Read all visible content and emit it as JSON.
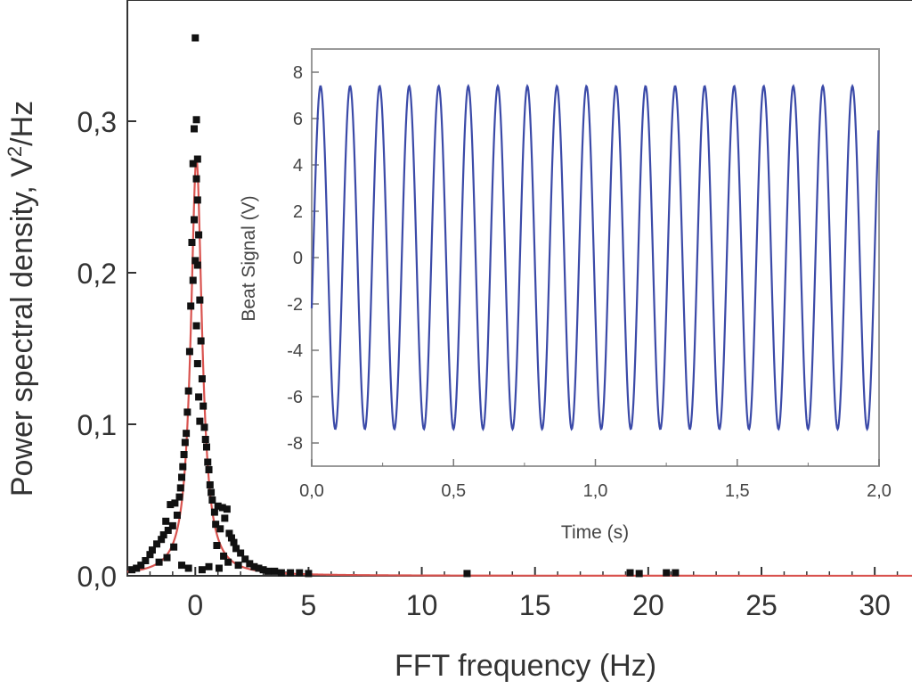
{
  "chart_data": [
    {
      "type": "scatter",
      "xlabel": "FFT frequency (Hz)",
      "ylabel_main": "Power spectral density, V",
      "ylabel_sup": "2",
      "ylabel_tail": "/Hz",
      "xlim": [
        -3,
        32
      ],
      "ylim": [
        0,
        0.38
      ],
      "xticks": [
        0,
        5,
        10,
        15,
        20,
        25,
        30
      ],
      "xtick_labels": [
        "0",
        "5",
        "10",
        "15",
        "20",
        "25",
        "30"
      ],
      "yticks": [
        0.0,
        0.1,
        0.2,
        0.3
      ],
      "ytick_labels": [
        "0,0",
        "0,1",
        "0,2",
        "0,3"
      ],
      "series": [
        {
          "kind": "scatter",
          "color": "#111111",
          "points": [
            [
              0.0,
              0.355
            ],
            [
              0.05,
              0.301
            ],
            [
              -0.05,
              0.295
            ],
            [
              0.1,
              0.275
            ],
            [
              -0.1,
              0.272
            ],
            [
              0.05,
              0.262
            ],
            [
              0.1,
              0.248
            ],
            [
              -0.05,
              0.235
            ],
            [
              0.15,
              0.225
            ],
            [
              -0.15,
              0.22
            ],
            [
              0.0,
              0.208
            ],
            [
              0.1,
              0.205
            ],
            [
              -0.1,
              0.195
            ],
            [
              0.2,
              0.182
            ],
            [
              -0.2,
              0.178
            ],
            [
              0.05,
              0.165
            ],
            [
              0.25,
              0.155
            ],
            [
              -0.25,
              0.148
            ],
            [
              0.1,
              0.14
            ],
            [
              0.3,
              0.13
            ],
            [
              -0.3,
              0.122
            ],
            [
              0.15,
              0.118
            ],
            [
              0.35,
              0.112
            ],
            [
              -0.35,
              0.108
            ],
            [
              0.2,
              0.102
            ],
            [
              0.4,
              0.098
            ],
            [
              -0.4,
              0.094
            ],
            [
              0.45,
              0.09
            ],
            [
              -0.45,
              0.088
            ],
            [
              0.5,
              0.085
            ],
            [
              -0.5,
              0.08
            ],
            [
              0.55,
              0.075
            ],
            [
              -0.55,
              0.072
            ],
            [
              0.6,
              0.07
            ],
            [
              -0.6,
              0.065
            ],
            [
              0.65,
              0.06
            ],
            [
              -0.65,
              0.058
            ],
            [
              0.7,
              0.055
            ],
            [
              -0.7,
              0.052
            ],
            [
              0.75,
              0.05
            ],
            [
              -0.9,
              0.048
            ],
            [
              1.0,
              0.046
            ],
            [
              1.2,
              0.045
            ],
            [
              1.4,
              0.044
            ],
            [
              -1.1,
              0.047
            ],
            [
              0.85,
              0.042
            ],
            [
              -0.8,
              0.04
            ],
            [
              1.3,
              0.038
            ],
            [
              -1.3,
              0.036
            ],
            [
              0.9,
              0.034
            ],
            [
              -1.0,
              0.033
            ],
            [
              1.1,
              0.031
            ],
            [
              -1.2,
              0.03
            ],
            [
              1.5,
              0.028
            ],
            [
              -1.4,
              0.027
            ],
            [
              1.6,
              0.025
            ],
            [
              -1.5,
              0.024
            ],
            [
              1.7,
              0.022
            ],
            [
              -1.7,
              0.021
            ],
            [
              0.95,
              0.02
            ],
            [
              -0.95,
              0.019
            ],
            [
              1.8,
              0.018
            ],
            [
              -1.9,
              0.017
            ],
            [
              2.0,
              0.015
            ],
            [
              -2.0,
              0.014
            ],
            [
              1.25,
              0.013
            ],
            [
              -1.25,
              0.012
            ],
            [
              2.2,
              0.011
            ],
            [
              -2.2,
              0.01
            ],
            [
              1.45,
              0.009
            ],
            [
              -1.6,
              0.009
            ],
            [
              2.4,
              0.008
            ],
            [
              -2.4,
              0.007
            ],
            [
              1.9,
              0.007
            ],
            [
              2.6,
              0.006
            ],
            [
              -2.6,
              0.005
            ],
            [
              2.8,
              0.005
            ],
            [
              3.0,
              0.004
            ],
            [
              -2.8,
              0.004
            ],
            [
              3.2,
              0.003
            ],
            [
              3.5,
              0.003
            ],
            [
              3.8,
              0.002
            ],
            [
              4.2,
              0.002
            ],
            [
              4.6,
              0.002
            ],
            [
              5.0,
              0.0015
            ],
            [
              0.3,
              0.004
            ],
            [
              -0.3,
              0.005
            ],
            [
              0.6,
              0.006
            ],
            [
              -0.6,
              0.007
            ],
            [
              1.05,
              0.005
            ],
            [
              12.0,
              0.0015
            ],
            [
              19.2,
              0.002
            ],
            [
              19.6,
              0.0015
            ],
            [
              20.8,
              0.002
            ],
            [
              21.2,
              0.002
            ]
          ]
        },
        {
          "kind": "fit-line",
          "color": "#d9534f",
          "center": 0.05,
          "amplitude": 0.275,
          "gamma": 0.3
        }
      ]
    },
    {
      "type": "line",
      "xlabel": "Time (s)",
      "ylabel": "Beat Signal (V)",
      "xlim": [
        0,
        2.0
      ],
      "ylim": [
        -9,
        9
      ],
      "xticks": [
        0,
        0.5,
        1.0,
        1.5,
        2.0
      ],
      "xtick_labels": [
        "0,0",
        "0,5",
        "1,0",
        "1,5",
        "2,0"
      ],
      "yticks": [
        -8,
        -6,
        -4,
        -2,
        0,
        2,
        4,
        6,
        8
      ],
      "ytick_labels": [
        "-8",
        "-6",
        "-4",
        "-2",
        "0",
        "2",
        "4",
        "6",
        "8"
      ],
      "series": [
        {
          "kind": "sine",
          "color": "#3b4aa8",
          "amplitude": 7.4,
          "frequency_hz": 9.6,
          "phase": -0.3
        }
      ]
    }
  ]
}
